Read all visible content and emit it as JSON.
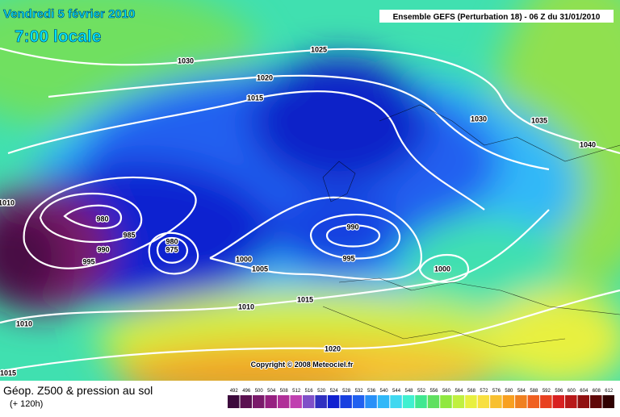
{
  "header": {
    "date": "Vendredi 5 février 2010",
    "time": "7:00 locale",
    "run": "Ensemble GEFS (Perturbation 18)  -  06 Z du 31/01/2010"
  },
  "copyright": "Copyright © 2008 Meteociel.fr",
  "legend": {
    "title": "Géop. Z500 & pression au sol",
    "lead": "(+ 120h)",
    "scale": [
      492,
      496,
      500,
      504,
      508,
      512,
      516,
      520,
      524,
      528,
      532,
      536,
      540,
      544,
      548,
      552,
      556,
      560,
      564,
      568,
      572,
      576,
      580,
      584,
      588,
      592,
      596,
      600,
      604,
      608,
      612
    ]
  },
  "isobar_labels": [
    "1030",
    "1025",
    "1020",
    "1015",
    "1030",
    "1035",
    "1040",
    "1010",
    "980",
    "985",
    "990",
    "995",
    "980",
    "975",
    "990",
    "995",
    "1000",
    "1005",
    "1000",
    "1015",
    "1010",
    "1010",
    "1020",
    "1015"
  ]
}
